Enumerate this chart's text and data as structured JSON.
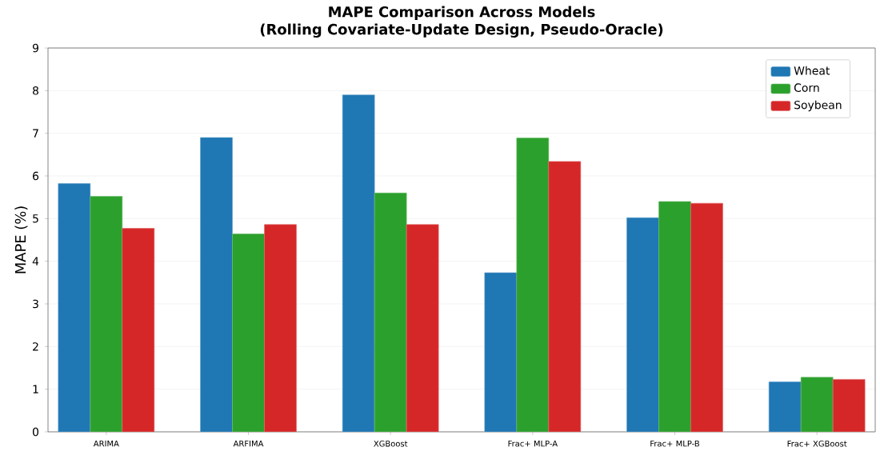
{
  "chart_data": {
    "type": "bar",
    "title": "MAPE Comparison Across Models",
    "subtitle": "(Rolling Covariate-Update Design, Pseudo-Oracle)",
    "ylabel": "MAPE (%)",
    "categories": [
      "ARIMA",
      "ARFIMA",
      "XGBoost",
      "Frac+ MLP-A",
      "Frac+ MLP-B",
      "Frac+ XGBoost"
    ],
    "series": [
      {
        "name": "Wheat",
        "color": "#1f77b4",
        "values": [
          5.82,
          6.9,
          7.9,
          3.73,
          5.02,
          1.17
        ]
      },
      {
        "name": "Corn",
        "color": "#2ca02c",
        "values": [
          5.52,
          4.64,
          5.6,
          6.89,
          5.4,
          1.28
        ]
      },
      {
        "name": "Soybean",
        "color": "#d62728",
        "values": [
          4.77,
          4.86,
          4.86,
          6.34,
          5.36,
          1.23
        ]
      }
    ],
    "ylim": [
      0,
      9
    ],
    "yticks": [
      0,
      1,
      2,
      3,
      4,
      5,
      6,
      7,
      8,
      9
    ],
    "grid": "y",
    "legend": "top right"
  }
}
